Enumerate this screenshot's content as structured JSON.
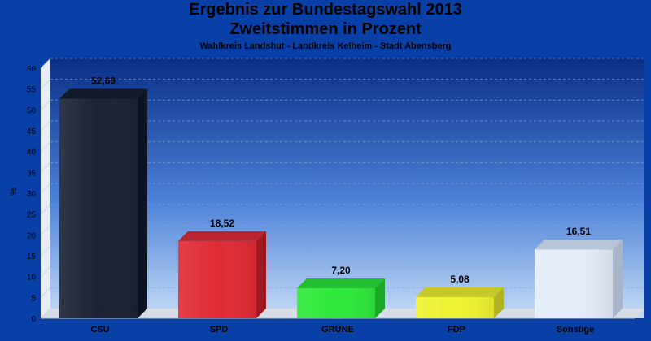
{
  "chart_data": {
    "type": "bar",
    "title": "Ergebnis zur Bundestagswahl 2013",
    "title_line2": "Zweitstimmen in Prozent",
    "subtitle": "Wahlkreis Landshut - Landkreis Kelheim - Stadt Abensberg",
    "xlabel": "",
    "ylabel": "%",
    "ylim": [
      0,
      60
    ],
    "yticks": [
      0,
      5,
      10,
      15,
      20,
      25,
      30,
      35,
      40,
      45,
      50,
      55,
      60
    ],
    "grid": true,
    "categories": [
      "CSU",
      "SPD",
      "GRÜNE",
      "FDP",
      "Sonstige"
    ],
    "values": [
      52.69,
      18.52,
      7.2,
      5.08,
      16.51
    ],
    "value_labels": [
      "52,69",
      "18,52",
      "7,20",
      "5,08",
      "16,51"
    ],
    "colors": [
      "#1a2233",
      "#e02a34",
      "#2ee83a",
      "#eef230",
      "#e4ecfa"
    ],
    "side_colors": [
      "#0c1424",
      "#a01820",
      "#1ea828",
      "#b0b422",
      "#a8b4c8"
    ],
    "top_colors": [
      "#121a2a",
      "#b82430",
      "#22bf2e",
      "#c4c828",
      "#b8c4d8"
    ]
  }
}
